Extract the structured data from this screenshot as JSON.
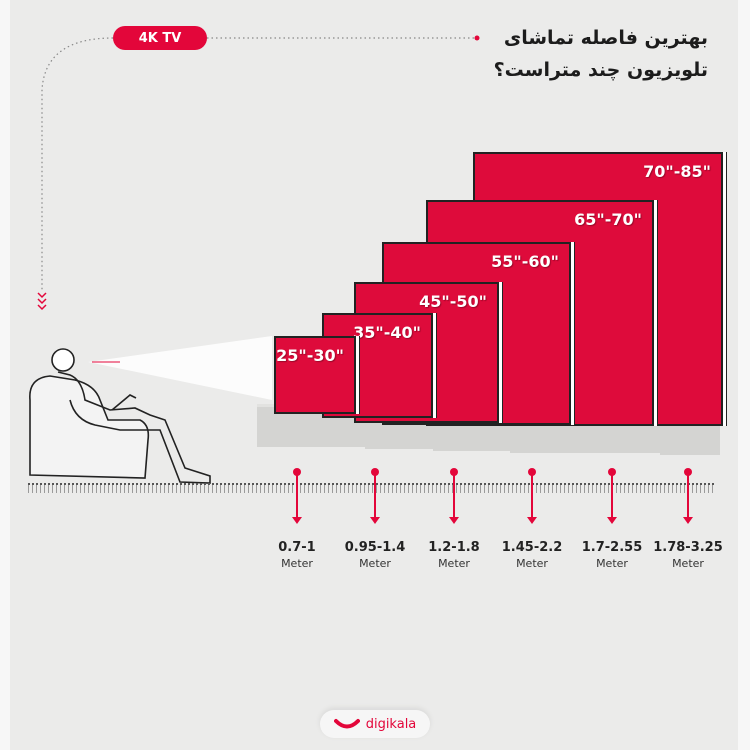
{
  "badge": "4K TV",
  "title": {
    "line1": "بهترین فاصله تماشای",
    "line2": "تلویزیون چند متراست؟"
  },
  "accent_color": "#e3063a",
  "tvs": [
    {
      "size": "25\"-30\"",
      "distance": "0.7-1",
      "unit": "Meter"
    },
    {
      "size": "35\"-40\"",
      "distance": "0.95-1.4",
      "unit": "Meter"
    },
    {
      "size": "45\"-50\"",
      "distance": "1.2-1.8",
      "unit": "Meter"
    },
    {
      "size": "55\"-60\"",
      "distance": "1.45-2.2",
      "unit": "Meter"
    },
    {
      "size": "65\"-70\"",
      "distance": "1.7-2.55",
      "unit": "Meter"
    },
    {
      "size": "70\"-85\"",
      "distance": "1.78-3.25",
      "unit": "Meter"
    }
  ],
  "brand": {
    "name": "digikala",
    "icon": "smile-logo-icon"
  }
}
